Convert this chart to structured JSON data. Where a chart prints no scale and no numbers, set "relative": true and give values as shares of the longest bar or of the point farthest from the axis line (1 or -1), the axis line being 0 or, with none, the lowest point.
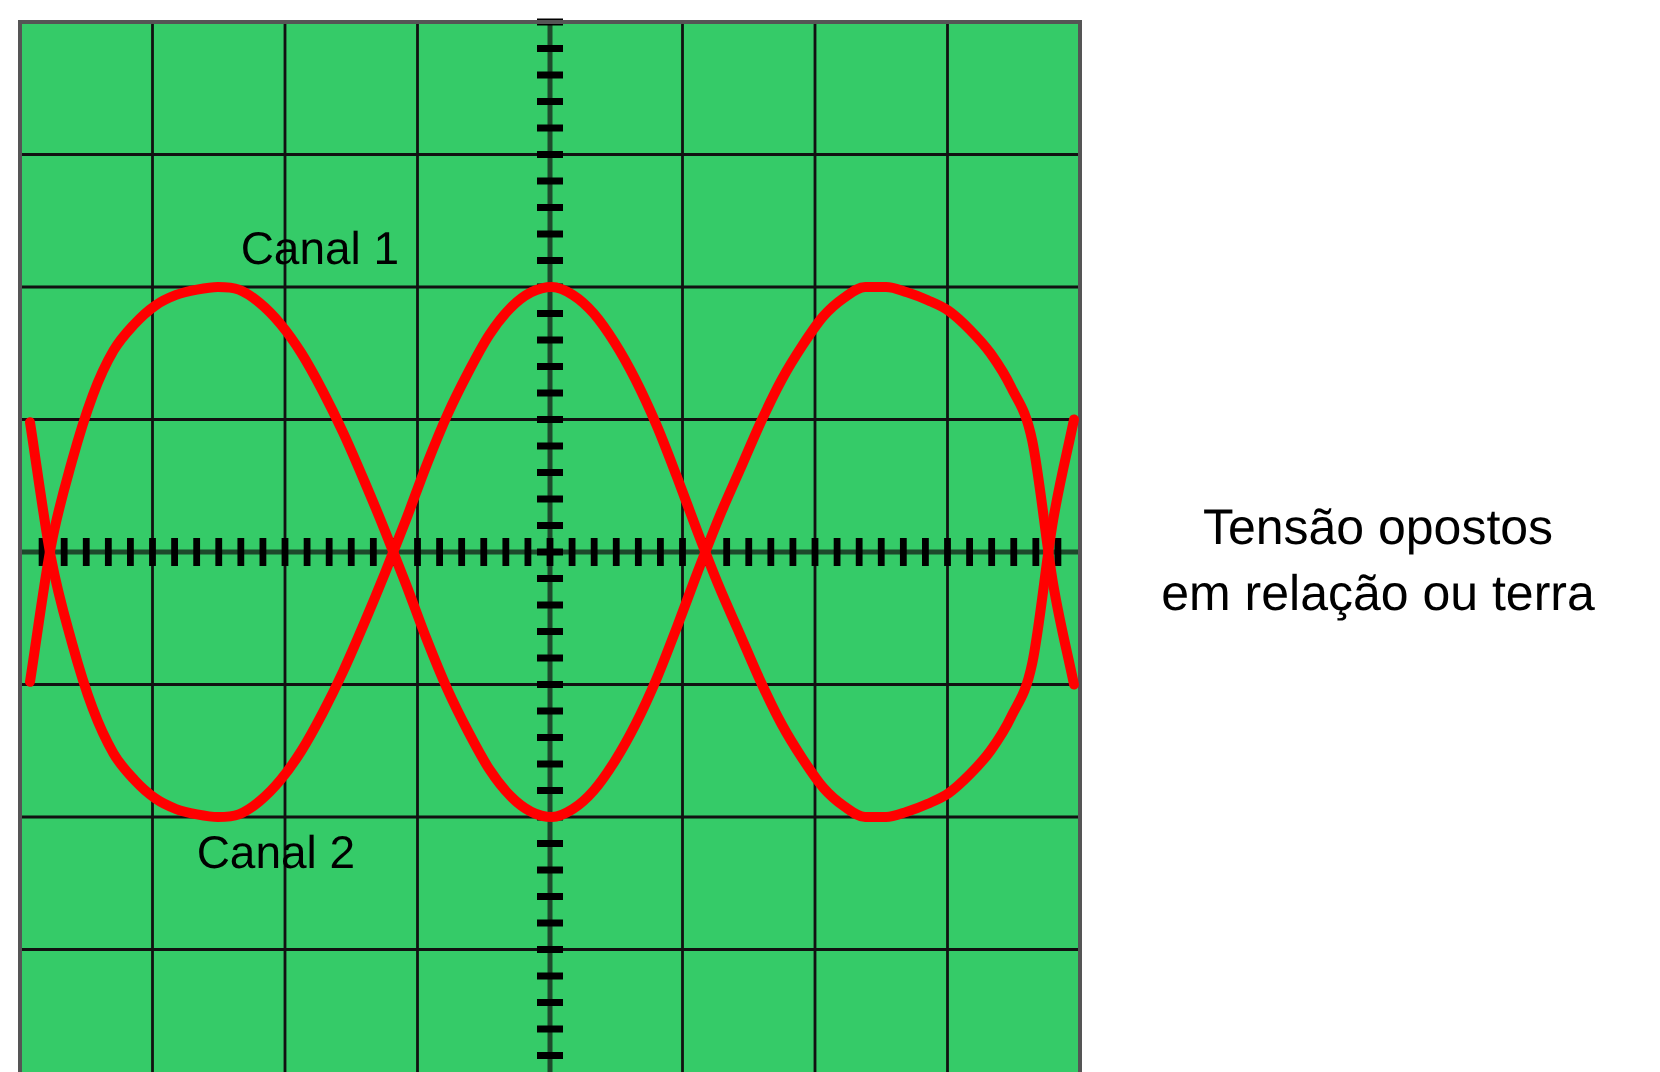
{
  "chart_data": {
    "type": "line",
    "relative": true,
    "grid": true,
    "legend": false,
    "marker": "none",
    "line_style": "solid",
    "categories": [
      null,
      null,
      null,
      null,
      null,
      null,
      null,
      null,
      null,
      null,
      null,
      null,
      null,
      null,
      null,
      null,
      null,
      null,
      null,
      null,
      null,
      null,
      null,
      null,
      null,
      null,
      null,
      null,
      null,
      null,
      null,
      null,
      null,
      null,
      null,
      null,
      null,
      null,
      null,
      null,
      null,
      null,
      null,
      null,
      null,
      null,
      null,
      null,
      null,
      null,
      null
    ],
    "series": [
      {
        "name": "Canal 1",
        "color": "#ff0000",
        "values": [
          -0.49,
          0.02,
          0.34,
          0.59,
          0.76,
          0.86,
          0.93,
          0.97,
          0.99,
          1.0,
          0.99,
          0.94,
          0.86,
          0.75,
          0.61,
          0.45,
          0.27,
          0.08,
          -0.12,
          -0.33,
          -0.52,
          -0.68,
          -0.82,
          -0.92,
          -0.98,
          -1.0,
          -0.97,
          -0.9,
          -0.79,
          -0.65,
          -0.48,
          -0.28,
          -0.07,
          0.13,
          0.31,
          0.49,
          0.65,
          0.78,
          0.89,
          0.96,
          1.0,
          1.0,
          0.98,
          0.95,
          0.91,
          0.84,
          0.75,
          0.62,
          0.42,
          -0.12,
          -0.5
        ]
      },
      {
        "name": "Canal 2",
        "color": "#ff0000",
        "values": [
          0.49,
          -0.02,
          -0.34,
          -0.59,
          -0.76,
          -0.86,
          -0.93,
          -0.97,
          -0.99,
          -1.0,
          -0.99,
          -0.94,
          -0.86,
          -0.75,
          -0.61,
          -0.45,
          -0.27,
          -0.08,
          0.12,
          0.33,
          0.52,
          0.68,
          0.82,
          0.92,
          0.98,
          1.0,
          0.97,
          0.9,
          0.79,
          0.65,
          0.48,
          0.28,
          0.07,
          -0.13,
          -0.31,
          -0.49,
          -0.65,
          -0.78,
          -0.89,
          -0.96,
          -1.0,
          -1.0,
          -0.98,
          -0.95,
          -0.91,
          -0.84,
          -0.75,
          -0.62,
          -0.42,
          0.12,
          0.5
        ]
      }
    ],
    "annotations": [
      "Tensão opostos\nem relação ou terra"
    ]
  }
}
